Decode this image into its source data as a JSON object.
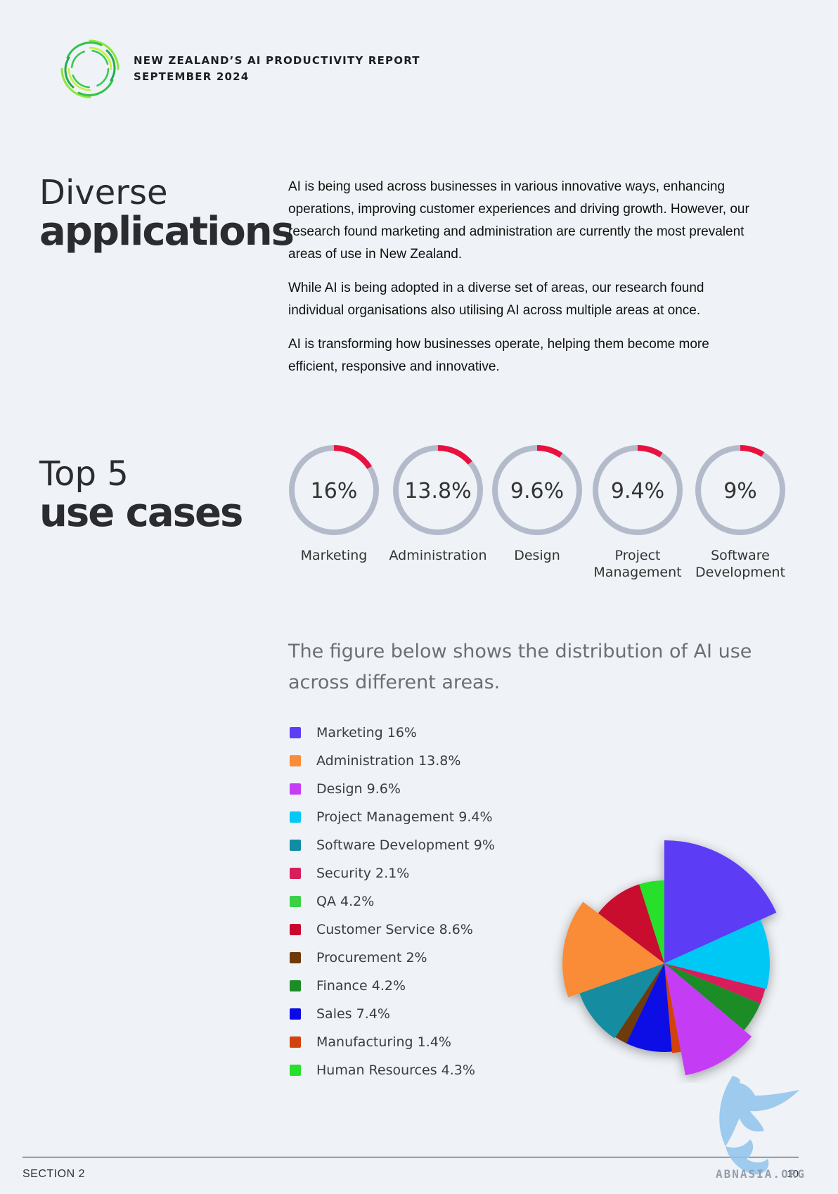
{
  "header": {
    "line1": "NEW ZEALAND’S AI PRODUCTIVITY REPORT",
    "line2": "SEPTEMBER 2024",
    "logo_icon": "concentric-rings-logo"
  },
  "intro_section": {
    "title_line1": "Diverse",
    "title_line2": "applications",
    "paragraphs": [
      "AI is being used across businesses in various innovative ways, enhancing operations, improving customer experiences and driving growth. However, our research found marketing and administration are currently the most prevalent areas of use in New Zealand.",
      "While AI is being adopted in a diverse set of areas, our research found individual organisations also utilising AI across multiple areas at once.",
      "AI is transforming how businesses operate, helping them become more efficient, responsive and innovative."
    ]
  },
  "top5": {
    "title_line1": "Top 5",
    "title_line2": "use cases",
    "ring_colors": {
      "accent": "#e8113f",
      "track": "#b3bbcb"
    },
    "items": [
      {
        "value_text": "16%",
        "value": 16,
        "label_line1": "Marketing",
        "label_line2": ""
      },
      {
        "value_text": "13.8%",
        "value": 13.8,
        "label_line1": "Administration",
        "label_line2": ""
      },
      {
        "value_text": "9.6%",
        "value": 9.6,
        "label_line1": "Design",
        "label_line2": ""
      },
      {
        "value_text": "9.4%",
        "value": 9.4,
        "label_line1": "Project",
        "label_line2": "Management"
      },
      {
        "value_text": "9%",
        "value": 9,
        "label_line1": "Software",
        "label_line2": "Development"
      }
    ]
  },
  "figure_caption": "The figure below shows the distribution of AI use across different areas.",
  "chart_data": {
    "type": "pie",
    "title": "",
    "legend_position": "left",
    "series": [
      {
        "label": "Marketing 16%",
        "name": "Marketing",
        "value": 16,
        "color": "#5b3ef5"
      },
      {
        "label": "Administration 13.8%",
        "name": "Administration",
        "value": 13.8,
        "color": "#fa8c38"
      },
      {
        "label": "Design 9.6%",
        "name": "Design",
        "value": 9.6,
        "color": "#c43cf5"
      },
      {
        "label": "Project Management 9.4%",
        "name": "Project Management",
        "value": 9.4,
        "color": "#06c8f5"
      },
      {
        "label": "Software Development 9%",
        "name": "Software Development",
        "value": 9,
        "color": "#128ca0"
      },
      {
        "label": "Security 2.1%",
        "name": "Security",
        "value": 2.1,
        "color": "#d81e5b"
      },
      {
        "label": "QA 4.2%",
        "name": "QA",
        "value": 4.2,
        "color": "#3ad144"
      },
      {
        "label": "Customer Service 8.6%",
        "name": "Customer Service",
        "value": 8.6,
        "color": "#c8082f"
      },
      {
        "label": "Procurement 2%",
        "name": "Procurement",
        "value": 2,
        "color": "#6e3a08"
      },
      {
        "label": "Finance 4.2%",
        "name": "Finance",
        "value": 4.2,
        "color": "#1c8c28"
      },
      {
        "label": "Sales 7.4%",
        "name": "Sales",
        "value": 7.4,
        "color": "#0a0ae6"
      },
      {
        "label": "Manufacturing 1.4%",
        "name": "Manufacturing",
        "value": 1.4,
        "color": "#d2420c"
      },
      {
        "label": "Human Resources 4.3%",
        "name": "Human Resources",
        "value": 4.3,
        "color": "#26e02a"
      }
    ]
  },
  "footer": {
    "section": "SECTION 2",
    "page": "10"
  },
  "watermark": {
    "text": "ABNASIA.ORG",
    "icon": "winged-griffin-icon"
  }
}
